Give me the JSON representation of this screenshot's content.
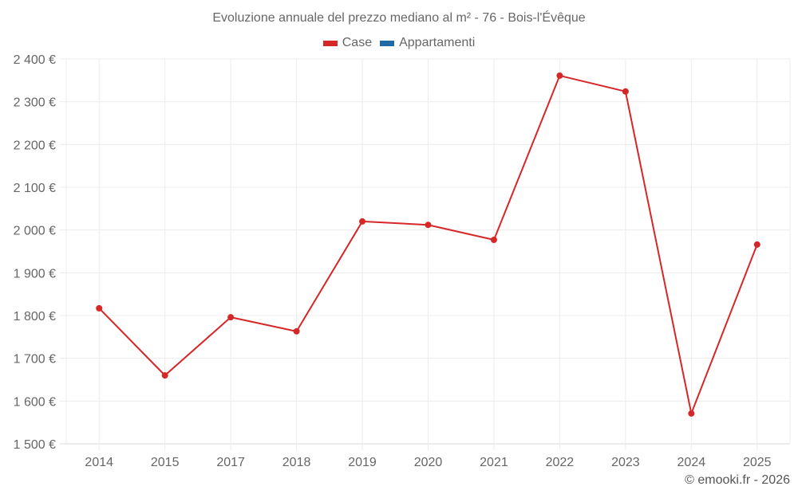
{
  "chart_data": {
    "type": "line",
    "title": "Evoluzione annuale del prezzo mediano al m² - 76 - Bois-l'Évêque",
    "xlabel": "",
    "ylabel": "",
    "categories": [
      "2014",
      "2015",
      "2017",
      "2018",
      "2019",
      "2020",
      "2021",
      "2022",
      "2023",
      "2024",
      "2025"
    ],
    "series": [
      {
        "name": "Case",
        "color": "#d62728",
        "values": [
          1817,
          1660,
          1796,
          1763,
          2020,
          2012,
          1977,
          2361,
          2324,
          1571,
          1966
        ]
      },
      {
        "name": "Appartamenti",
        "color": "#1f6aa5",
        "values": []
      }
    ],
    "ylim": [
      1500,
      2400
    ],
    "yticks": [
      1500,
      1600,
      1700,
      1800,
      1900,
      2000,
      2100,
      2200,
      2300,
      2400
    ],
    "ytick_labels": [
      "1 500 €",
      "1 600 €",
      "1 700 €",
      "1 800 €",
      "1 900 €",
      "2 000 €",
      "2 100 €",
      "2 200 €",
      "2 300 €",
      "2 400 €"
    ],
    "grid": true,
    "legend_position": "top"
  },
  "header": {
    "title": "Evoluzione annuale del prezzo mediano al m² - 76 - Bois-l'Évêque"
  },
  "legend": {
    "items": [
      {
        "label": "Case",
        "color": "#d62728"
      },
      {
        "label": "Appartamenti",
        "color": "#1f6aa5"
      }
    ]
  },
  "footer": {
    "credit": "© emooki.fr - 2026"
  }
}
